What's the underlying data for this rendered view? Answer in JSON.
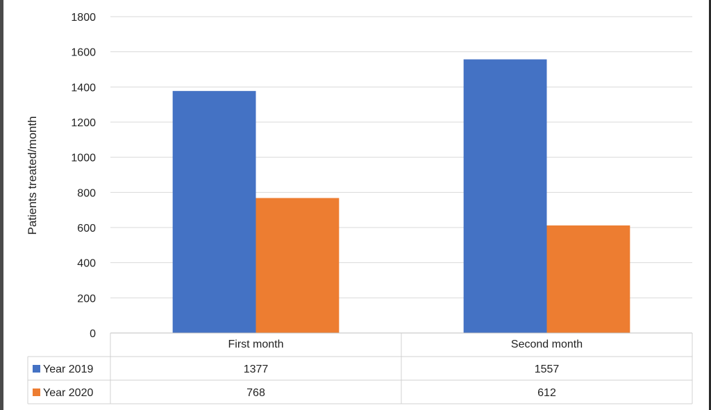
{
  "chart_data": {
    "type": "bar",
    "ylabel": "Patients treated/month",
    "ylim": [
      0,
      1800
    ],
    "yticks": [
      0,
      200,
      400,
      600,
      800,
      1000,
      1200,
      1400,
      1600,
      1800
    ],
    "categories": [
      "First month",
      "Second month"
    ],
    "series": [
      {
        "name": "Year 2019",
        "values": [
          1377,
          1557
        ],
        "color": "#4472C4"
      },
      {
        "name": "Year 2020",
        "values": [
          768,
          612
        ],
        "color": "#ED7D31"
      }
    ],
    "grid": true,
    "legend": "data-table"
  }
}
